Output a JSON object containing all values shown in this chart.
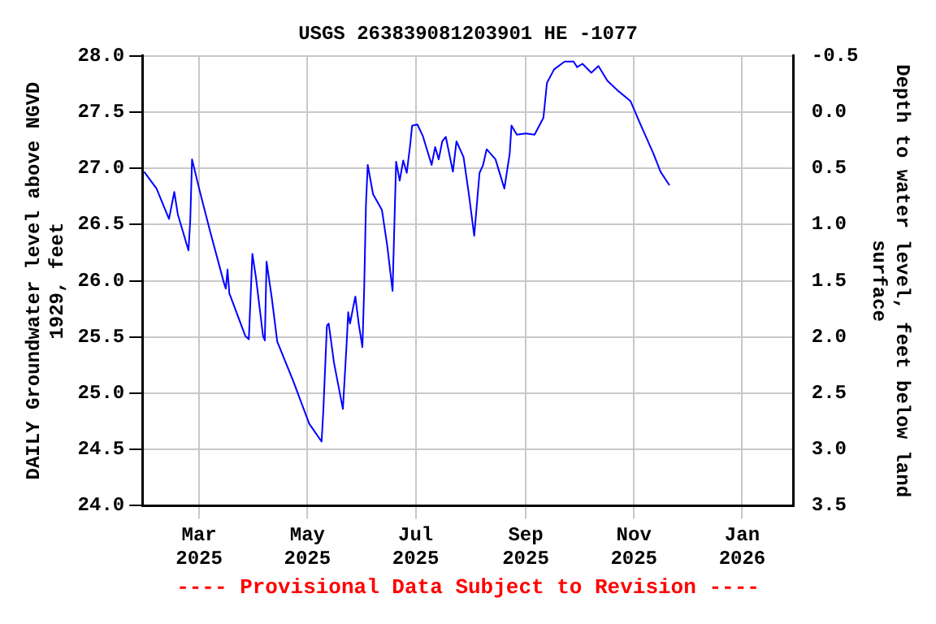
{
  "chart_data": {
    "type": "line",
    "title": "USGS 263839081203901 HE -1077",
    "xlabel": null,
    "ylabel": "DAILY Groundwater level above NGVD 1929, feet",
    "y2label": "Depth to water level, feet below land surface",
    "annotations": [
      "---- Provisional Data Subject to Revision ----"
    ],
    "x": [
      "2025-01-29",
      "2025-02-05",
      "2025-02-12",
      "2025-02-15",
      "2025-02-17",
      "2025-02-23",
      "2025-02-24",
      "2025-02-25",
      "2025-03-01",
      "2025-03-07",
      "2025-03-15",
      "2025-03-16",
      "2025-03-17",
      "2025-03-18",
      "2025-03-27",
      "2025-03-29",
      "2025-03-31",
      "2025-04-02",
      "2025-04-06",
      "2025-04-07",
      "2025-04-08",
      "2025-04-11",
      "2025-04-14",
      "2025-04-23",
      "2025-05-02",
      "2025-05-09",
      "2025-05-10",
      "2025-05-12",
      "2025-05-13",
      "2025-05-16",
      "2025-05-21",
      "2025-05-23",
      "2025-05-24",
      "2025-05-25",
      "2025-05-28",
      "2025-05-30",
      "2025-06-01",
      "2025-06-02",
      "2025-06-03",
      "2025-06-04",
      "2025-06-07",
      "2025-06-12",
      "2025-06-15",
      "2025-06-18",
      "2025-06-19",
      "2025-06-20",
      "2025-06-22",
      "2025-06-24",
      "2025-06-26",
      "2025-06-28",
      "2025-06-29",
      "2025-07-02",
      "2025-07-05",
      "2025-07-10",
      "2025-07-12",
      "2025-07-14",
      "2025-07-16",
      "2025-07-18",
      "2025-07-22",
      "2025-07-24",
      "2025-07-28",
      "2025-07-31",
      "2025-08-03",
      "2025-08-06",
      "2025-08-08",
      "2025-08-10",
      "2025-08-15",
      "2025-08-20",
      "2025-08-23",
      "2025-08-24",
      "2025-08-27",
      "2025-09-01",
      "2025-09-06",
      "2025-09-11",
      "2025-09-13",
      "2025-09-17",
      "2025-09-23",
      "2025-09-28",
      "2025-09-30",
      "2025-10-03",
      "2025-10-08",
      "2025-10-12",
      "2025-10-17",
      "2025-10-23",
      "2025-10-30",
      "2025-11-05",
      "2025-11-12",
      "2025-11-16",
      "2025-11-21"
    ],
    "series": [
      {
        "color": "#0000ff",
        "values": [
          26.97,
          26.82,
          26.55,
          26.79,
          26.59,
          26.27,
          26.54,
          27.08,
          26.82,
          26.45,
          25.98,
          25.93,
          26.1,
          25.89,
          25.51,
          25.48,
          26.24,
          26.03,
          25.51,
          25.47,
          26.17,
          25.84,
          25.46,
          25.11,
          24.73,
          24.57,
          24.85,
          25.6,
          25.62,
          25.27,
          24.86,
          25.41,
          25.72,
          25.62,
          25.86,
          25.61,
          25.41,
          25.93,
          26.68,
          27.03,
          26.77,
          26.63,
          26.31,
          25.91,
          26.49,
          27.06,
          26.89,
          27.07,
          26.96,
          27.22,
          27.38,
          27.39,
          27.29,
          27.03,
          27.19,
          27.08,
          27.24,
          27.28,
          26.97,
          27.24,
          27.1,
          26.77,
          26.4,
          26.96,
          27.03,
          27.17,
          27.08,
          26.82,
          27.13,
          27.38,
          27.3,
          27.31,
          27.3,
          27.45,
          27.76,
          27.88,
          27.95,
          27.95,
          27.9,
          27.93,
          27.85,
          27.91,
          27.78,
          27.69,
          27.6,
          27.38,
          27.13,
          26.97,
          26.85
        ]
      }
    ],
    "xlim": [
      "2025-01-28",
      "2026-01-30"
    ],
    "xticks": [
      {
        "value": "2025-03-01",
        "label": "Mar 2025"
      },
      {
        "value": "2025-05-01",
        "label": "May 2025"
      },
      {
        "value": "2025-07-01",
        "label": "Jul 2025"
      },
      {
        "value": "2025-09-01",
        "label": "Sep 2025"
      },
      {
        "value": "2025-11-01",
        "label": "Nov 2025"
      },
      {
        "value": "2026-01-01",
        "label": "Jan 2026"
      }
    ],
    "ylim": [
      24,
      28
    ],
    "yticks": [
      {
        "value": 24,
        "label": "24.0"
      },
      {
        "value": 24.5,
        "label": "24.5"
      },
      {
        "value": 25,
        "label": "25.0"
      },
      {
        "value": 25.5,
        "label": "25.5"
      },
      {
        "value": 26,
        "label": "26.0"
      },
      {
        "value": 26.5,
        "label": "26.5"
      },
      {
        "value": 27,
        "label": "27.0"
      },
      {
        "value": 27.5,
        "label": "27.5"
      },
      {
        "value": 28,
        "label": "28.0"
      }
    ],
    "y2lim": [
      3.5,
      -0.5
    ],
    "y2ticks": [
      {
        "value": -0.5,
        "label": "-0.5"
      },
      {
        "value": 0,
        "label": "0.0"
      },
      {
        "value": 0.5,
        "label": "0.5"
      },
      {
        "value": 1,
        "label": "1.0"
      },
      {
        "value": 1.5,
        "label": "1.5"
      },
      {
        "value": 2,
        "label": "2.0"
      },
      {
        "value": 2.5,
        "label": "2.5"
      },
      {
        "value": 3,
        "label": "3.0"
      },
      {
        "value": 3.5,
        "label": "3.5"
      }
    ],
    "grid": true,
    "legend": false,
    "marker": "none",
    "line_style": "solid"
  }
}
